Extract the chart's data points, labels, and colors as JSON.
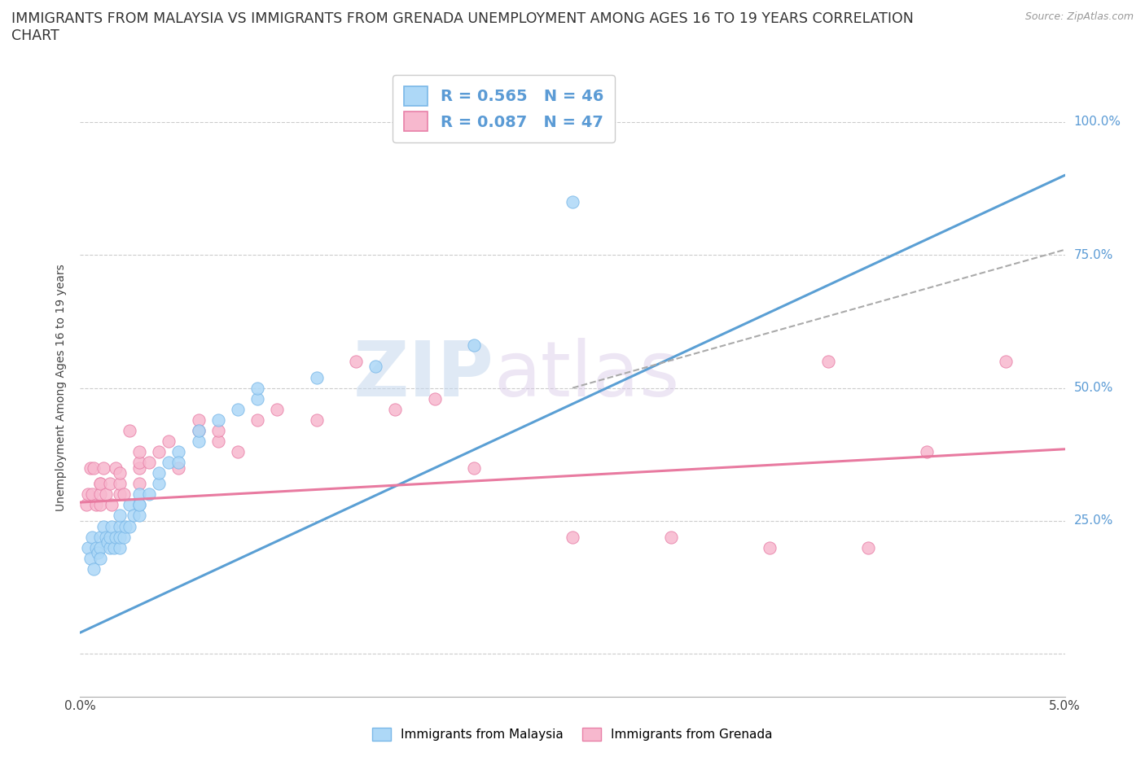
{
  "title_line1": "IMMIGRANTS FROM MALAYSIA VS IMMIGRANTS FROM GRENADA UNEMPLOYMENT AMONG AGES 16 TO 19 YEARS CORRELATION",
  "title_line2": "CHART",
  "source_text": "Source: ZipAtlas.com",
  "ylabel": "Unemployment Among Ages 16 to 19 years",
  "xlim": [
    0.0,
    0.05
  ],
  "ylim": [
    -0.08,
    1.08
  ],
  "watermark_zip": "ZIP",
  "watermark_atlas": "atlas",
  "legend_malaysia": "R = 0.565   N = 46",
  "legend_grenada": "R = 0.087   N = 47",
  "malaysia_color": "#add8f7",
  "malaysia_edge": "#7ab8e8",
  "grenada_color": "#f7b8ce",
  "grenada_edge": "#e880a8",
  "malaysia_line_color": "#5a9fd4",
  "grenada_line_color": "#e87aa0",
  "dashed_line_color": "#aaaaaa",
  "background_color": "#ffffff",
  "grid_color": "#cccccc",
  "title_fontsize": 12.5,
  "axis_label_fontsize": 10,
  "tick_fontsize": 11,
  "malaysia_scatter_x": [
    0.0004,
    0.0005,
    0.0006,
    0.0007,
    0.0008,
    0.0009,
    0.001,
    0.001,
    0.001,
    0.0012,
    0.0013,
    0.0014,
    0.0015,
    0.0015,
    0.0016,
    0.0017,
    0.0018,
    0.002,
    0.002,
    0.002,
    0.002,
    0.0022,
    0.0023,
    0.0025,
    0.0025,
    0.0027,
    0.003,
    0.003,
    0.003,
    0.003,
    0.0035,
    0.004,
    0.004,
    0.0045,
    0.005,
    0.005,
    0.006,
    0.006,
    0.007,
    0.008,
    0.009,
    0.009,
    0.012,
    0.015,
    0.02,
    0.025
  ],
  "malaysia_scatter_y": [
    0.2,
    0.18,
    0.22,
    0.16,
    0.2,
    0.19,
    0.22,
    0.2,
    0.18,
    0.24,
    0.22,
    0.21,
    0.2,
    0.22,
    0.24,
    0.2,
    0.22,
    0.2,
    0.24,
    0.22,
    0.26,
    0.22,
    0.24,
    0.28,
    0.24,
    0.26,
    0.28,
    0.3,
    0.26,
    0.28,
    0.3,
    0.32,
    0.34,
    0.36,
    0.38,
    0.36,
    0.4,
    0.42,
    0.44,
    0.46,
    0.48,
    0.5,
    0.52,
    0.54,
    0.58,
    0.85
  ],
  "grenada_scatter_x": [
    0.0003,
    0.0004,
    0.0005,
    0.0006,
    0.0007,
    0.0008,
    0.001,
    0.001,
    0.001,
    0.001,
    0.0012,
    0.0013,
    0.0015,
    0.0016,
    0.0018,
    0.002,
    0.002,
    0.002,
    0.0022,
    0.0025,
    0.003,
    0.003,
    0.003,
    0.003,
    0.0035,
    0.004,
    0.0045,
    0.005,
    0.006,
    0.006,
    0.007,
    0.007,
    0.008,
    0.009,
    0.01,
    0.012,
    0.014,
    0.016,
    0.018,
    0.02,
    0.025,
    0.03,
    0.035,
    0.038,
    0.04,
    0.043,
    0.047
  ],
  "grenada_scatter_y": [
    0.28,
    0.3,
    0.35,
    0.3,
    0.35,
    0.28,
    0.32,
    0.28,
    0.3,
    0.32,
    0.35,
    0.3,
    0.32,
    0.28,
    0.35,
    0.3,
    0.32,
    0.34,
    0.3,
    0.42,
    0.35,
    0.32,
    0.36,
    0.38,
    0.36,
    0.38,
    0.4,
    0.35,
    0.42,
    0.44,
    0.4,
    0.42,
    0.38,
    0.44,
    0.46,
    0.44,
    0.55,
    0.46,
    0.48,
    0.35,
    0.22,
    0.22,
    0.2,
    0.55,
    0.2,
    0.38,
    0.55
  ],
  "mal_trend_x0": 0.0,
  "mal_trend_y0": 0.04,
  "mal_trend_x1": 0.05,
  "mal_trend_y1": 0.9,
  "gren_trend_x0": 0.0,
  "gren_trend_y0": 0.285,
  "gren_trend_x1": 0.05,
  "gren_trend_y1": 0.385,
  "dash_trend_x0": 0.025,
  "dash_trend_y0": 0.5,
  "dash_trend_x1": 0.05,
  "dash_trend_y1": 0.76
}
